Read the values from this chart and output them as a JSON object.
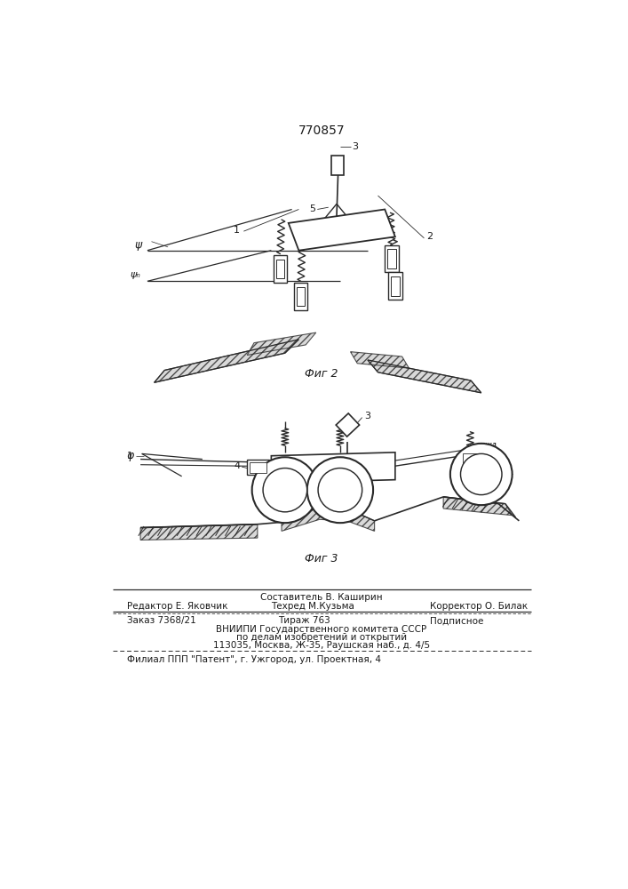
{
  "patent_number": "770857",
  "fig2_caption": "Фиг 2",
  "fig3_caption": "Фиг 3",
  "footer_line1_left": "Редактор Е. Яковчик",
  "footer_line1_center": "Составитель В. Каширин",
  "footer_line1_right": "Корректор О. Билак",
  "footer_line2_center": "Техред М.Кузьма",
  "footer_order": "Заказ 7368/21",
  "footer_tirazh": "Тираж 763",
  "footer_podpisnoe": "Подписное",
  "footer_vniip1": "ВНИИПИ Государственного комитета СССР",
  "footer_vniip2": "по делам изобретений и открытий",
  "footer_addr": "113035, Москва, Ж-35, Раушская наб., д. 4/5",
  "footer_filial": "Филиал ППП \"Патент\", г. Ужгород, ул. Проектная, 4",
  "bg_color": "#ffffff",
  "line_color": "#2a2a2a",
  "text_color": "#1a1a1a"
}
